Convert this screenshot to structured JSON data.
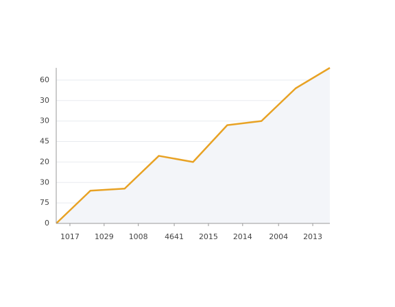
{
  "chart_data": {
    "type": "line",
    "x": [
      0,
      1,
      2,
      3,
      4,
      5,
      5.5,
      6,
      7,
      8
    ],
    "series": [
      {
        "color": "#e8a224",
        "values": [
          0,
          16,
          17,
          33,
          30,
          48,
          49,
          50,
          66,
          76
        ]
      }
    ],
    "xlim": [
      0,
      8
    ],
    "xticks": [
      {
        "value": 0.4,
        "label": "1017"
      },
      {
        "value": 1.4,
        "label": "1029"
      },
      {
        "value": 2.4,
        "label": "1008"
      },
      {
        "value": 3.45,
        "label": "4641"
      },
      {
        "value": 4.45,
        "label": "2015"
      },
      {
        "value": 5.45,
        "label": "2014"
      },
      {
        "value": 6.5,
        "label": "2004"
      },
      {
        "value": 7.5,
        "label": "2013"
      }
    ],
    "ylim": [
      0,
      76
    ],
    "yticks": [
      0,
      {
        "value": 10,
        "label": "75"
      },
      {
        "value": 20,
        "label": "30"
      },
      {
        "value": 30,
        "label": "20"
      },
      {
        "value": 40,
        "label": "45"
      },
      {
        "value": 50,
        "label": "30"
      },
      {
        "value": 60,
        "label": "30"
      },
      {
        "value": 70,
        "label": "60"
      }
    ],
    "grid": true,
    "area_color": "#f3f5f9"
  }
}
